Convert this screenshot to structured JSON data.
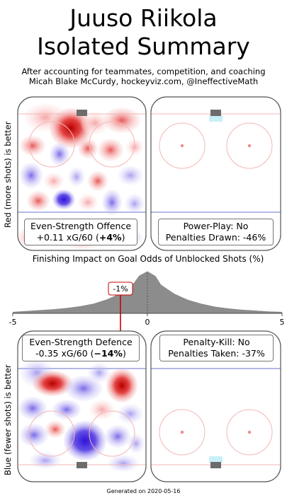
{
  "header": {
    "title_line1": "Juuso Riikola",
    "title_line2": "Isolated Summary",
    "subtitle_line1": "After accounting for teammates, competition, and coaching",
    "subtitle_line2": "Micah Blake McCurdy, hockeyviz.com, @IneffectiveMath"
  },
  "axis_labels": {
    "top": "Red (more shots) is better",
    "bottom": "Blue (fewer shots) is better"
  },
  "panels": {
    "ev_offence": {
      "title": "Even-Strength Offence",
      "value": "+0.11 xG/60 (",
      "pct": "+4%",
      "close": ")"
    },
    "power_play": {
      "line1": "Power-Play: No",
      "line2": "Penalties Drawn: -46%"
    },
    "ev_defence": {
      "title": "Even-Strength Defence",
      "value": "-0.35 xG/60 (",
      "pct": "−14%",
      "close": ")"
    },
    "penalty_kill": {
      "line1": "Penalty-Kill: No",
      "line2": "Penalties Taken: -37%"
    }
  },
  "footer": {
    "text": "Generated on 2020-05-16"
  },
  "colors": {
    "density_fill": "#8c8c8c",
    "marker": "#cc0000",
    "rink_line": "#555555",
    "red_line": "#f4b6b6",
    "blue_line": "#b3b8e6",
    "crease": "#c8f0f8"
  },
  "chart_data": {
    "type": "area",
    "title": "Finishing Impact on Goal Odds of Unblocked Shots (%)",
    "x_ticks": [
      "-5",
      "0",
      "5"
    ],
    "xlim": [
      -5,
      5
    ],
    "x": [
      -5.0,
      -4.5,
      -4.0,
      -3.5,
      -3.0,
      -2.5,
      -2.0,
      -1.5,
      -1.0,
      -0.5,
      -0.3,
      0.0,
      0.3,
      0.5,
      1.0,
      1.5,
      2.0,
      2.5,
      3.0,
      3.5,
      4.0,
      4.5,
      5.0
    ],
    "density": [
      0.03,
      0.05,
      0.07,
      0.09,
      0.12,
      0.16,
      0.22,
      0.32,
      0.46,
      0.7,
      0.87,
      0.97,
      0.86,
      0.66,
      0.45,
      0.31,
      0.22,
      0.15,
      0.11,
      0.08,
      0.06,
      0.04,
      0.03
    ],
    "marker_value": -1,
    "marker_label": "-1%"
  }
}
